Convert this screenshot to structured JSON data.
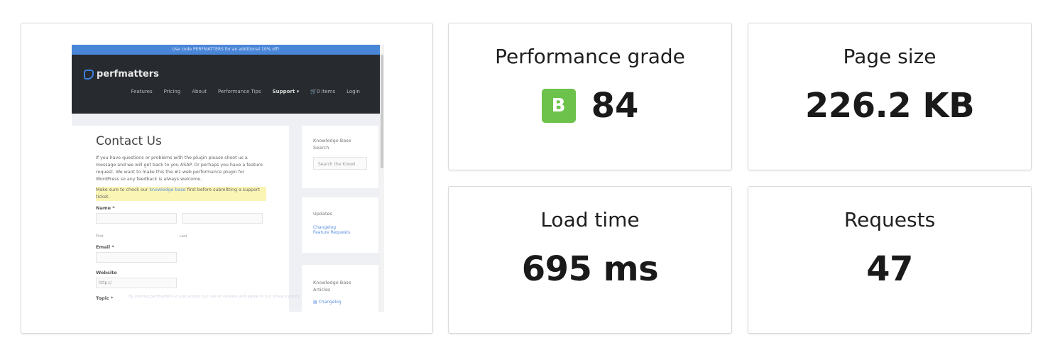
{
  "screenshot": {
    "promo_banner": "Use code PERFMATTERS for an additional 10% off!",
    "brand": "perfmatters",
    "nav": [
      "Features",
      "Pricing",
      "About",
      "Performance Tips",
      "Support ▾",
      "🛒0 items",
      "Login"
    ],
    "page_title": "Contact Us",
    "intro": "If you have questions or problems with the plugin please shoot us a message and we will get back to you ASAP. Or perhaps you have a feature request. We want to make this the #1 web performance plugin for WordPress so any feedback is always welcome.",
    "notice_before": "Make sure to check our ",
    "notice_link": "knowledge base",
    "notice_after": " first before submitting a support ticket.",
    "name_label": "Name *",
    "first_label": "First",
    "last_label": "Last",
    "email_label": "Email *",
    "website_label": "Website",
    "website_placeholder": "http://",
    "topic_label": "Topic *",
    "cookie_notice": "By visiting perfmatters.io you accept our use of cookies and agree to our privacy policy.",
    "sidebar": {
      "kb_search_title": "Knowledge Base Search",
      "kb_search_placeholder": "Search the Knowl",
      "updates_title": "Updates",
      "updates_links": [
        "Changelog",
        "Feature Requests"
      ],
      "kb_articles_title": "Knowledge Base Articles",
      "kb_articles_links": [
        "Changelog"
      ]
    }
  },
  "metrics": {
    "grade": {
      "label": "Performance grade",
      "letter": "B",
      "score": "84",
      "color": "#6cc24a"
    },
    "page_size": {
      "label": "Page size",
      "value": "226.2 KB"
    },
    "load_time": {
      "label": "Load time",
      "value": "695 ms"
    },
    "requests": {
      "label": "Requests",
      "value": "47"
    }
  }
}
